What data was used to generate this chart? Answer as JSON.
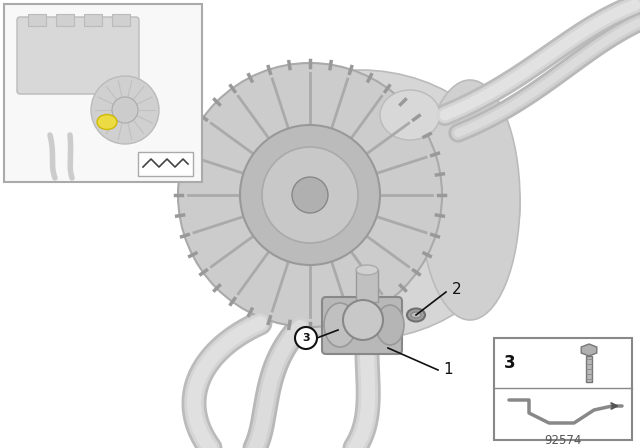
{
  "bg_color": "#ffffff",
  "white": "#ffffff",
  "light_gray": "#d8d8d8",
  "dark_gray": "#888888",
  "mid_gray": "#b0b0b0",
  "black": "#111111",
  "diagram_number": "92574",
  "part_labels": [
    "1",
    "2",
    "3"
  ]
}
